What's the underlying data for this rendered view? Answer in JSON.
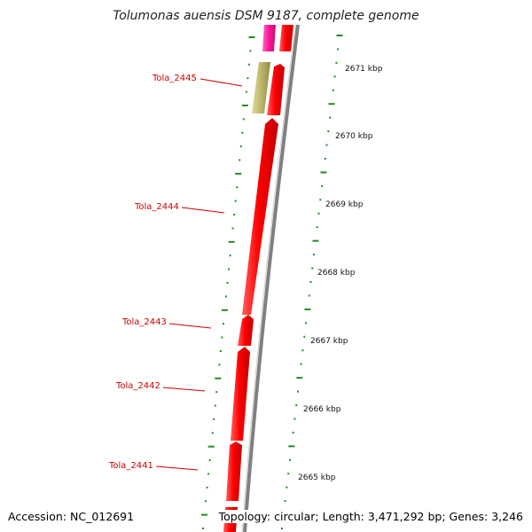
{
  "title": "Tolumonas auensis DSM 9187, complete genome",
  "footer": {
    "accession": "Accession: NC_012691",
    "topology": "Topology: circular; Length: 3,471,292 bp; Genes: 3,246"
  },
  "colors": {
    "gene_forward": "#ff0000",
    "gene_highlight_pink": "#ff1493",
    "gene_khaki": "#bdb76b",
    "label": "#cc0000",
    "tick": "#228b22",
    "backbone": "#808080"
  },
  "genes": [
    {
      "name": "Tola_2445",
      "label": "Tola_2445"
    },
    {
      "name": "Tola_2444",
      "label": "Tola_2444"
    },
    {
      "name": "Tola_2443",
      "label": "Tola_2443"
    },
    {
      "name": "Tola_2442",
      "label": "Tola_2442"
    },
    {
      "name": "Tola_2441",
      "label": "Tola_2441"
    }
  ],
  "ticks": [
    "2671 kbp",
    "2670 kbp",
    "2669 kbp",
    "2668 kbp",
    "2667 kbp",
    "2666 kbp",
    "2665 kbp"
  ]
}
